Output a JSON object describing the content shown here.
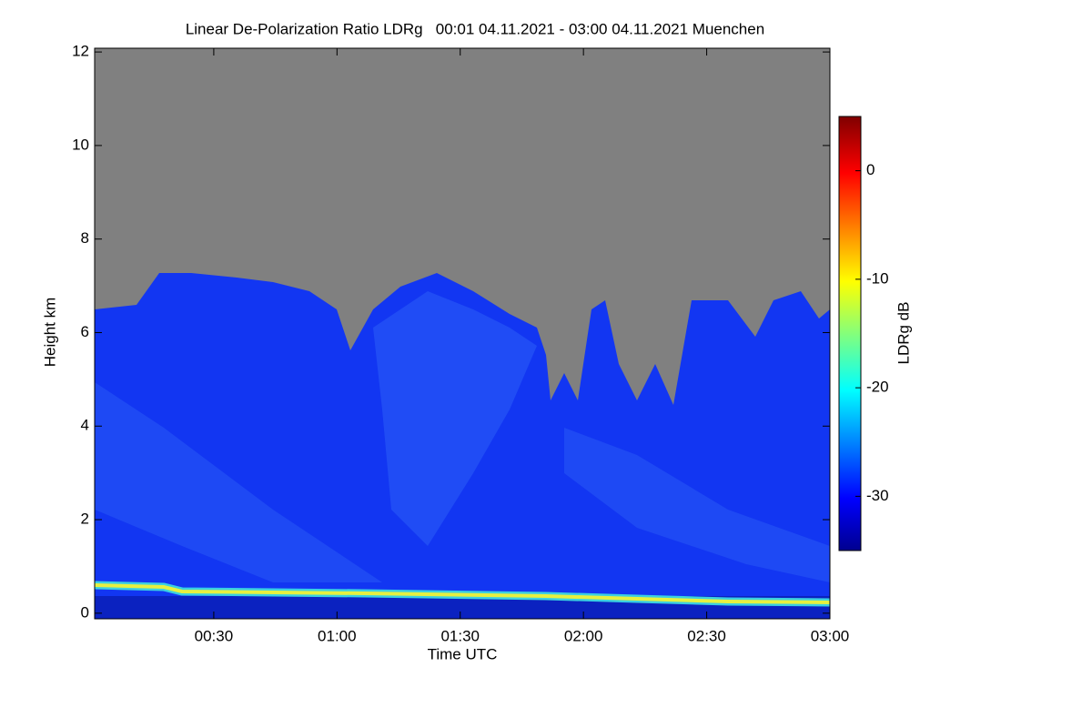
{
  "chart_data": {
    "type": "heatmap",
    "title": "Linear De-Polarization Ratio LDRg   00:01 04.11.2021 - 03:00 04.11.2021 Muenchen",
    "xlabel": "Time UTC",
    "ylabel": "Height km",
    "xlim": [
      1,
      180
    ],
    "xticks": [
      {
        "value": 30,
        "label": "00:30"
      },
      {
        "value": 60,
        "label": "01:00"
      },
      {
        "value": 90,
        "label": "01:30"
      },
      {
        "value": 120,
        "label": "02:00"
      },
      {
        "value": 150,
        "label": "02:30"
      },
      {
        "value": 180,
        "label": "03:00"
      }
    ],
    "ylim": [
      -0.12,
      12.08
    ],
    "yticks": [
      0,
      2,
      4,
      6,
      8,
      10,
      12
    ],
    "colorbar": {
      "label": "LDRg dB",
      "lim": [
        -35,
        5
      ],
      "ticks": [
        0,
        -10,
        -20,
        -30
      ]
    }
  }
}
